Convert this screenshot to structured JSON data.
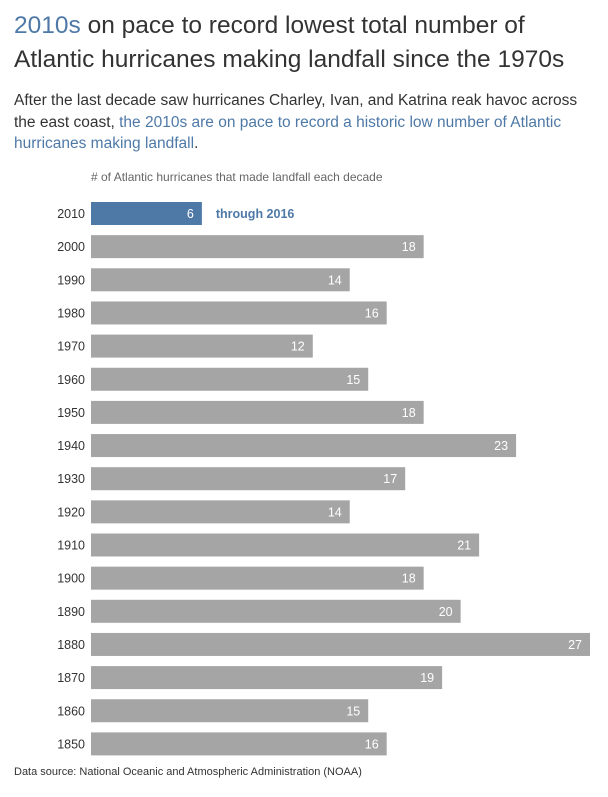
{
  "title": {
    "highlight": "2010s",
    "rest": " on pace to record lowest total number of Atlantic hurricanes making landfall since the 1970s"
  },
  "subtitle": {
    "plain": "After the last decade saw hurricanes Charley, Ivan, and Katrina reak havoc across the east coast, ",
    "highlight": "the 2010s are on pace to record a historic low number of Atlantic hurricanes making landfall",
    "end": "."
  },
  "source": "Data source: National Oceanic and Atmospheric Administration (NOAA)",
  "colors": {
    "highlight": "#4e79a7",
    "bar": "#a5a5a5",
    "text": "#333333",
    "bar_label": "#ffffff"
  },
  "chart_data": {
    "type": "bar",
    "orientation": "horizontal",
    "xlabel": "# of Atlantic hurricanes that made landfall each decade",
    "ylabel": "",
    "categories": [
      "2010",
      "2000",
      "1990",
      "1980",
      "1970",
      "1960",
      "1950",
      "1940",
      "1930",
      "1920",
      "1910",
      "1900",
      "1890",
      "1880",
      "1870",
      "1860",
      "1850"
    ],
    "values": [
      6,
      18,
      14,
      16,
      12,
      15,
      18,
      23,
      17,
      14,
      21,
      18,
      20,
      27,
      19,
      15,
      16
    ],
    "highlighted_category": "2010",
    "annotation": "through 2016",
    "xlim": [
      0,
      27
    ],
    "grid": false
  }
}
